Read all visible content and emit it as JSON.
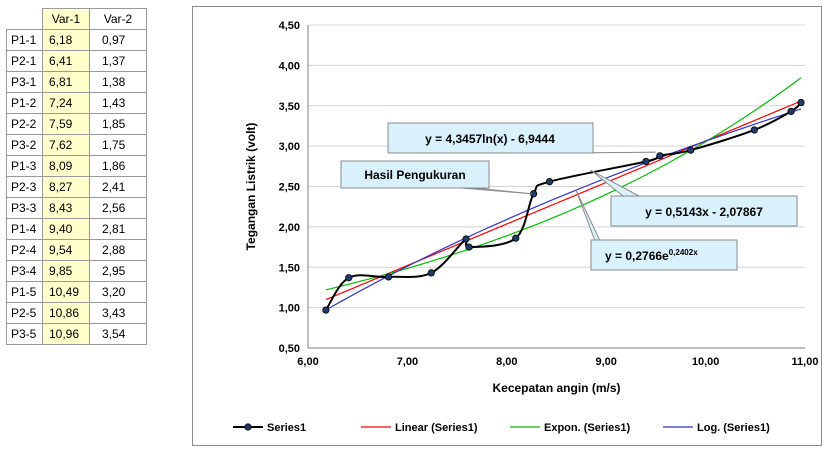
{
  "table": {
    "headers": [
      "Var-1",
      "Var-2"
    ],
    "rows": [
      {
        "label": "P1-1",
        "var1": "6,18",
        "var2": "0,97"
      },
      {
        "label": "P2-1",
        "var1": "6,41",
        "var2": "1,37"
      },
      {
        "label": "P3-1",
        "var1": "6,81",
        "var2": "1,38"
      },
      {
        "label": "P1-2",
        "var1": "7,24",
        "var2": "1,43"
      },
      {
        "label": "P2-2",
        "var1": "7,59",
        "var2": "1,85"
      },
      {
        "label": "P3-2",
        "var1": "7,62",
        "var2": "1,75"
      },
      {
        "label": "P1-3",
        "var1": "8,09",
        "var2": "1,86"
      },
      {
        "label": "P2-3",
        "var1": "8,27",
        "var2": "2,41"
      },
      {
        "label": "P3-3",
        "var1": "8,43",
        "var2": "2,56"
      },
      {
        "label": "P1-4",
        "var1": "9,40",
        "var2": "2,81"
      },
      {
        "label": "P2-4",
        "var1": "9,54",
        "var2": "2,88"
      },
      {
        "label": "P3-4",
        "var1": "9,85",
        "var2": "2,95"
      },
      {
        "label": "P1-5",
        "var1": "10,49",
        "var2": "3,20"
      },
      {
        "label": "P2-5",
        "var1": "10,86",
        "var2": "3,43"
      },
      {
        "label": "P3-5",
        "var1": "10,96",
        "var2": "3,54"
      }
    ]
  },
  "chart_data": {
    "type": "scatter",
    "title": "",
    "xlabel": "Kecepatan angin (m/s)",
    "ylabel": "Tegangan Listrik (volt)",
    "xlim": [
      6.0,
      11.0
    ],
    "ylim": [
      0.5,
      4.5
    ],
    "x_ticks": [
      "6,00",
      "7,00",
      "8,00",
      "9,00",
      "10,00",
      "11,00"
    ],
    "y_ticks": [
      "0,50",
      "1,00",
      "1,50",
      "2,00",
      "2,50",
      "3,00",
      "3,50",
      "4,00",
      "4,50"
    ],
    "grid": "horizontal",
    "legend_position": "bottom",
    "series": [
      {
        "name": "Series1",
        "color": "#000000",
        "marker": "circle",
        "x": [
          6.18,
          6.41,
          6.81,
          7.24,
          7.59,
          7.62,
          8.09,
          8.27,
          8.43,
          9.4,
          9.54,
          9.85,
          10.49,
          10.86,
          10.96
        ],
        "y": [
          0.97,
          1.37,
          1.38,
          1.43,
          1.85,
          1.75,
          1.86,
          2.41,
          2.56,
          2.81,
          2.88,
          2.95,
          3.2,
          3.43,
          3.54
        ]
      }
    ],
    "trendlines": [
      {
        "name": "Linear (Series1)",
        "kind": "linear",
        "color": "#ff0000",
        "a": 0.5143,
        "b": -2.07867
      },
      {
        "name": "Expon. (Series1)",
        "kind": "exponential",
        "color": "#00c000",
        "a": 0.2766,
        "b": 0.2402
      },
      {
        "name": "Log. (Series1)",
        "kind": "logarithmic",
        "color": "#3333cc",
        "a": 4.3457,
        "b": -6.9444
      }
    ],
    "annotations": [
      {
        "text": "Hasil Pengukuran",
        "target_x": 8.27,
        "target_y": 2.41
      },
      {
        "text": "y = 4,3457ln(x) - 6,9444",
        "target_x": 9.6,
        "target_y": 2.9
      },
      {
        "text": "y = 0,5143x - 2,07867",
        "target_x": 9.8,
        "target_y": 2.95
      },
      {
        "text_main": "y = 0,2766e",
        "text_sup": "0,2402x",
        "target_x": 9.0,
        "target_y": 2.4
      }
    ]
  }
}
